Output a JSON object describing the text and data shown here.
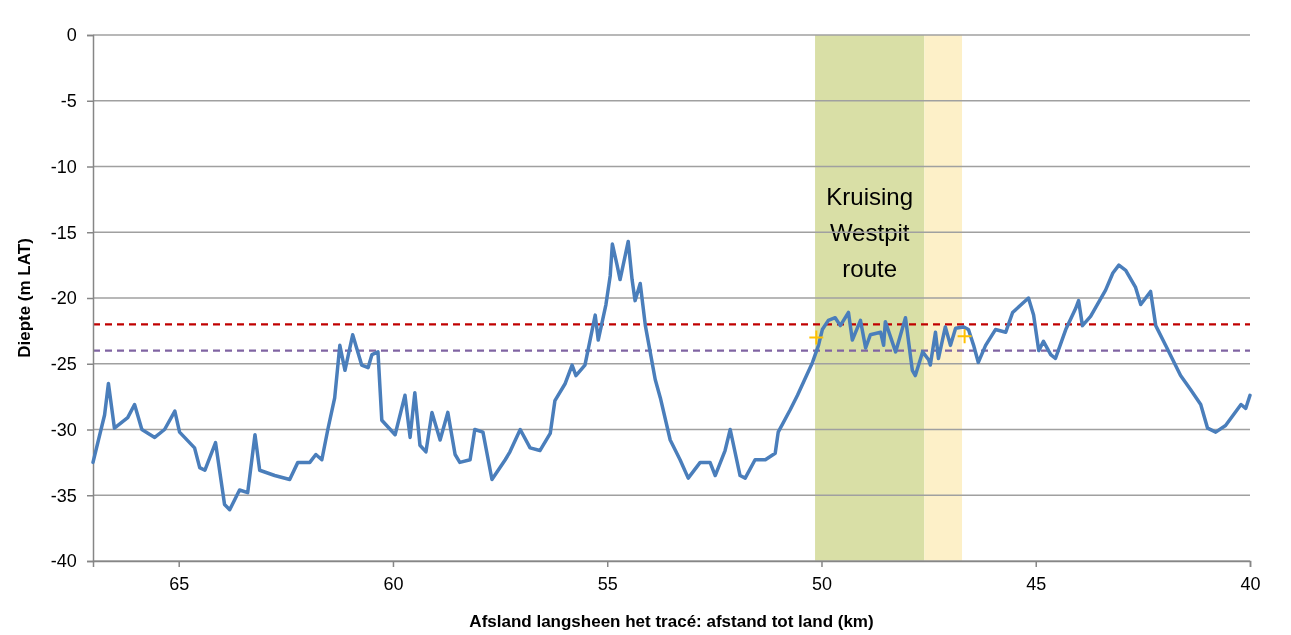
{
  "chart_data": {
    "type": "line",
    "xlabel": "Afsland langsheen het tracé: afstand tot land (km)",
    "ylabel": "Diepte (m LAT)",
    "xlim": [
      67,
      40
    ],
    "xticks": [
      65,
      60,
      55,
      50,
      45,
      40
    ],
    "ylim": [
      -40,
      0
    ],
    "yticks": [
      -40,
      -35,
      -30,
      -25,
      -20,
      -15,
      -10,
      -5,
      0
    ],
    "grid": "y",
    "line_style": "solid",
    "marker": "none",
    "bands": [
      {
        "axis": "x",
        "from": 50.15,
        "to": 47.6,
        "label": "Kruising Westpit route",
        "color": "#d9dfa6"
      },
      {
        "axis": "x",
        "from": 47.6,
        "to": 46.72,
        "label": null,
        "color": "#fdf0c8"
      }
    ],
    "ref_lines": [
      {
        "axis": "y",
        "value": -22,
        "label": null,
        "color": "#c00000",
        "line_style": "dashed"
      },
      {
        "axis": "y",
        "value": -24,
        "label": null,
        "color": "#8064a2",
        "line_style": "dashed"
      }
    ],
    "series": [
      {
        "color": "#4a7ebb",
        "x": [
          67.0,
          66.73,
          66.64,
          66.5,
          66.19,
          66.03,
          65.86,
          65.56,
          65.33,
          65.09,
          64.98,
          64.63,
          64.51,
          64.39,
          64.14,
          63.93,
          63.81,
          63.58,
          63.39,
          63.22,
          63.11,
          62.76,
          62.41,
          62.22,
          61.94,
          61.8,
          61.66,
          61.52,
          61.36,
          61.24,
          61.12,
          60.94,
          60.73,
          60.58,
          60.49,
          60.35,
          60.26,
          59.95,
          59.72,
          59.6,
          59.49,
          59.37,
          59.23,
          59.09,
          58.9,
          58.72,
          58.55,
          58.44,
          58.2,
          58.09,
          57.9,
          57.69,
          57.38,
          57.27,
          57.03,
          56.8,
          56.57,
          56.33,
          56.22,
          55.98,
          55.82,
          55.73,
          55.52,
          55.4,
          55.28,
          55.21,
          55.03,
          54.93,
          54.88,
          54.77,
          54.7,
          54.51,
          54.42,
          54.35,
          54.23,
          54.11,
          53.88,
          53.76,
          53.53,
          53.3,
          53.11,
          52.83,
          52.6,
          52.48,
          52.25,
          52.13,
          51.9,
          51.78,
          51.55,
          51.31,
          51.08,
          51.01,
          50.73,
          50.56,
          50.21,
          50.07,
          49.98,
          49.84,
          49.68,
          49.56,
          49.37,
          49.28,
          49.09,
          48.97,
          48.86,
          48.62,
          48.55,
          48.51,
          48.27,
          48.04,
          47.88,
          47.81,
          47.64,
          47.5,
          47.46,
          47.34,
          47.27,
          47.11,
          46.99,
          46.87,
          46.69,
          46.57,
          46.45,
          46.34,
          46.17,
          45.94,
          45.7,
          45.54,
          45.17,
          45.05,
          44.93,
          44.82,
          44.65,
          44.54,
          44.3,
          44.07,
          44.0,
          43.91,
          43.72,
          43.37,
          43.2,
          43.06,
          42.9,
          42.67,
          42.55,
          42.32,
          42.2,
          41.97,
          41.62,
          41.38,
          41.15,
          40.99,
          40.8,
          40.57,
          40.21,
          40.1,
          40.0
        ],
        "values": [
          -32.5,
          -28.9,
          -26.5,
          -29.9,
          -29.1,
          -28.1,
          -30.0,
          -30.6,
          -30.0,
          -28.6,
          -30.2,
          -31.4,
          -32.9,
          -33.1,
          -31.0,
          -35.7,
          -36.1,
          -34.6,
          -34.8,
          -30.4,
          -33.1,
          -33.5,
          -33.8,
          -32.5,
          -32.5,
          -31.9,
          -32.3,
          -30.0,
          -27.6,
          -23.6,
          -25.5,
          -22.8,
          -25.1,
          -25.3,
          -24.3,
          -24.1,
          -29.3,
          -30.4,
          -27.4,
          -30.6,
          -27.2,
          -31.2,
          -31.7,
          -28.7,
          -30.8,
          -28.7,
          -31.9,
          -32.5,
          -32.3,
          -30.0,
          -30.2,
          -33.8,
          -32.3,
          -31.7,
          -30.0,
          -31.4,
          -31.6,
          -30.3,
          -27.8,
          -26.5,
          -25.1,
          -25.9,
          -25.1,
          -23.2,
          -21.3,
          -23.2,
          -20.5,
          -18.3,
          -15.9,
          -17.5,
          -18.6,
          -15.7,
          -18.6,
          -20.2,
          -18.9,
          -22.1,
          -26.2,
          -27.6,
          -30.8,
          -32.3,
          -33.7,
          -32.5,
          -32.5,
          -33.5,
          -31.6,
          -30.0,
          -33.5,
          -33.7,
          -32.3,
          -32.3,
          -31.8,
          -30.2,
          -28.5,
          -27.4,
          -24.9,
          -23.6,
          -22.4,
          -21.7,
          -21.5,
          -22.1,
          -21.1,
          -23.2,
          -21.7,
          -23.8,
          -22.8,
          -22.6,
          -23.6,
          -21.8,
          -24.1,
          -21.5,
          -25.5,
          -25.9,
          -24.1,
          -24.7,
          -25.1,
          -22.6,
          -24.6,
          -22.2,
          -23.6,
          -22.3,
          -22.2,
          -22.4,
          -23.6,
          -24.9,
          -23.6,
          -22.4,
          -22.6,
          -21.1,
          -20.0,
          -21.3,
          -24.0,
          -23.3,
          -24.3,
          -24.6,
          -22.4,
          -20.8,
          -20.2,
          -22.1,
          -21.4,
          -19.4,
          -18.1,
          -17.5,
          -17.9,
          -19.2,
          -20.5,
          -19.5,
          -22.1,
          -23.6,
          -25.9,
          -27.0,
          -28.1,
          -29.9,
          -30.2,
          -29.7,
          -28.1,
          -28.4,
          -27.4
        ]
      },
      {
        "type": "scatter",
        "marker": "cross",
        "color": "#ffc000",
        "x": [
          50.12,
          46.66
        ],
        "values": [
          -23.0,
          -22.9
        ]
      }
    ]
  }
}
